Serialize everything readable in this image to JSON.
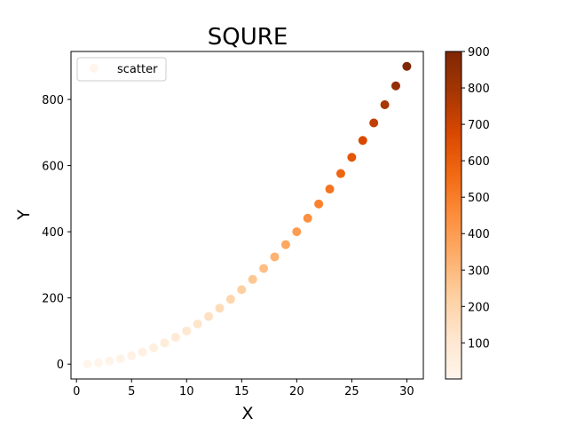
{
  "chart_data": {
    "type": "scatter",
    "title": "SQURE",
    "xlabel": "X",
    "ylabel": "Y",
    "xlim": [
      -0.5,
      31.5
    ],
    "ylim": [
      -45,
      945
    ],
    "xticks": [
      0,
      5,
      10,
      15,
      20,
      25,
      30
    ],
    "yticks": [
      0,
      200,
      400,
      600,
      800
    ],
    "grid": false,
    "legend": {
      "placement": "top-left",
      "entries": [
        "scatter"
      ]
    },
    "series": [
      {
        "name": "scatter",
        "x": [
          1,
          2,
          3,
          4,
          5,
          6,
          7,
          8,
          9,
          10,
          11,
          12,
          13,
          14,
          15,
          16,
          17,
          18,
          19,
          20,
          21,
          22,
          23,
          24,
          25,
          26,
          27,
          28,
          29,
          30
        ],
        "y": [
          1,
          4,
          9,
          16,
          25,
          36,
          49,
          64,
          81,
          100,
          121,
          144,
          169,
          196,
          225,
          256,
          289,
          324,
          361,
          400,
          441,
          484,
          529,
          576,
          625,
          676,
          729,
          784,
          841,
          900
        ],
        "color_by": "y"
      }
    ],
    "colorbar": {
      "colormap": "Oranges",
      "range": [
        1,
        900
      ],
      "ticks": [
        100,
        200,
        300,
        400,
        500,
        600,
        700,
        800,
        900
      ]
    }
  }
}
